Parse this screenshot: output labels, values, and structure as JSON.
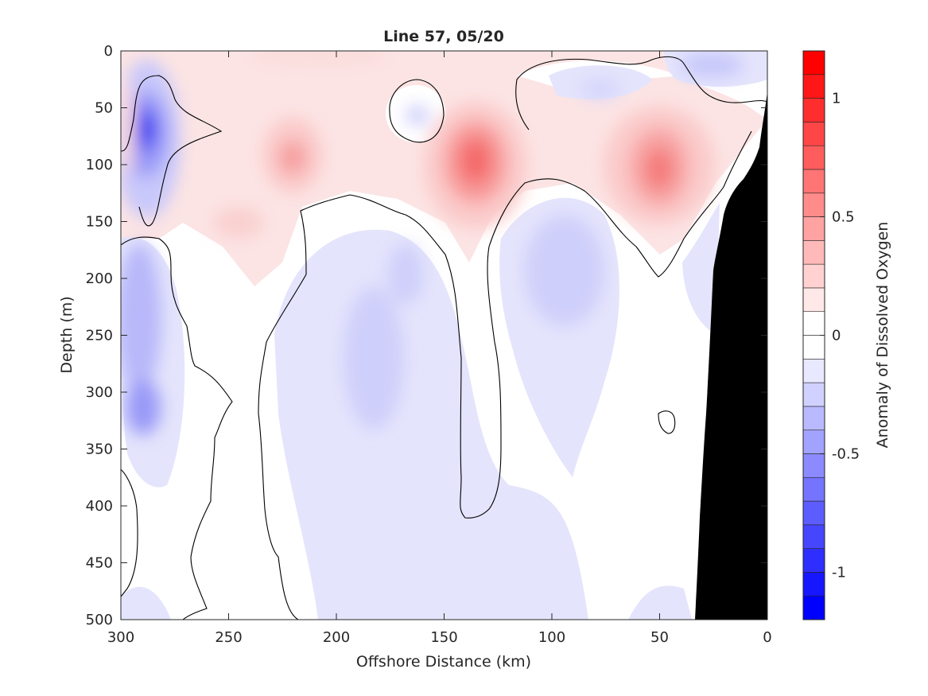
{
  "chart_data": {
    "type": "heatmap",
    "title": "Line 57, 05/20",
    "xlabel": "Offshore Distance (km)",
    "ylabel": "Depth (m)",
    "xlim": [
      300,
      0
    ],
    "ylim": [
      0,
      500
    ],
    "x_ticks": [
      "300",
      "250",
      "200",
      "150",
      "100",
      "50",
      "0"
    ],
    "x_tick_values": [
      300,
      250,
      200,
      150,
      100,
      50,
      0
    ],
    "y_ticks": [
      "0",
      "50",
      "100",
      "150",
      "200",
      "250",
      "300",
      "350",
      "400",
      "450",
      "500"
    ],
    "y_tick_values": [
      0,
      50,
      100,
      150,
      200,
      250,
      300,
      350,
      400,
      450,
      500
    ],
    "colorbar": {
      "label": "Anomaly of Dissolved Oxygen",
      "range": [
        -1.2,
        1.2
      ],
      "step": 0.1,
      "ticks": [
        "-1",
        "-0.5",
        "0",
        "0.5",
        "1"
      ],
      "tick_values": [
        -1,
        -0.5,
        0,
        0.5,
        1
      ],
      "neg_color": "#0000ff",
      "pos_color": "#ff0000",
      "zero_color": "#ffffff"
    },
    "anomaly_features": [
      {
        "name": "blue-core-north",
        "x_km": 290,
        "depth_m": 70,
        "value": -1.1
      },
      {
        "name": "blue-west-mid",
        "x_km": 288,
        "depth_m": 230,
        "value": -0.45
      },
      {
        "name": "blue-west-deep",
        "x_km": 290,
        "depth_m": 315,
        "value": -0.45
      },
      {
        "name": "blue-west-lower",
        "x_km": 288,
        "depth_m": 280,
        "value": -0.3
      },
      {
        "name": "red-core-135",
        "x_km": 135,
        "depth_m": 100,
        "value": 0.7
      },
      {
        "name": "red-core-50",
        "x_km": 50,
        "depth_m": 105,
        "value": 0.6
      },
      {
        "name": "red-core-220",
        "x_km": 220,
        "depth_m": 95,
        "value": 0.45
      },
      {
        "name": "red-patch-245",
        "x_km": 245,
        "depth_m": 155,
        "value": 0.25
      },
      {
        "name": "red-surface-170",
        "x_km": 170,
        "depth_m": 5,
        "value": 0.2
      },
      {
        "name": "blue-patch-188",
        "x_km": 188,
        "depth_m": 265,
        "value": -0.25
      },
      {
        "name": "blue-patch-165",
        "x_km": 165,
        "depth_m": 200,
        "value": -0.2
      },
      {
        "name": "blue-patch-90",
        "x_km": 90,
        "depth_m": 190,
        "value": -0.25
      },
      {
        "name": "blue-surface-20",
        "x_km": 22,
        "depth_m": 15,
        "value": -0.25
      },
      {
        "name": "blue-patch-75",
        "x_km": 75,
        "depth_m": 35,
        "value": -0.2
      },
      {
        "name": "blue-patch-163",
        "x_km": 163,
        "depth_m": 60,
        "value": -0.2
      }
    ],
    "shelf_mask": "bathymetry shown in black from about 33 km at 500 m rising to 0 km near 35 m"
  }
}
